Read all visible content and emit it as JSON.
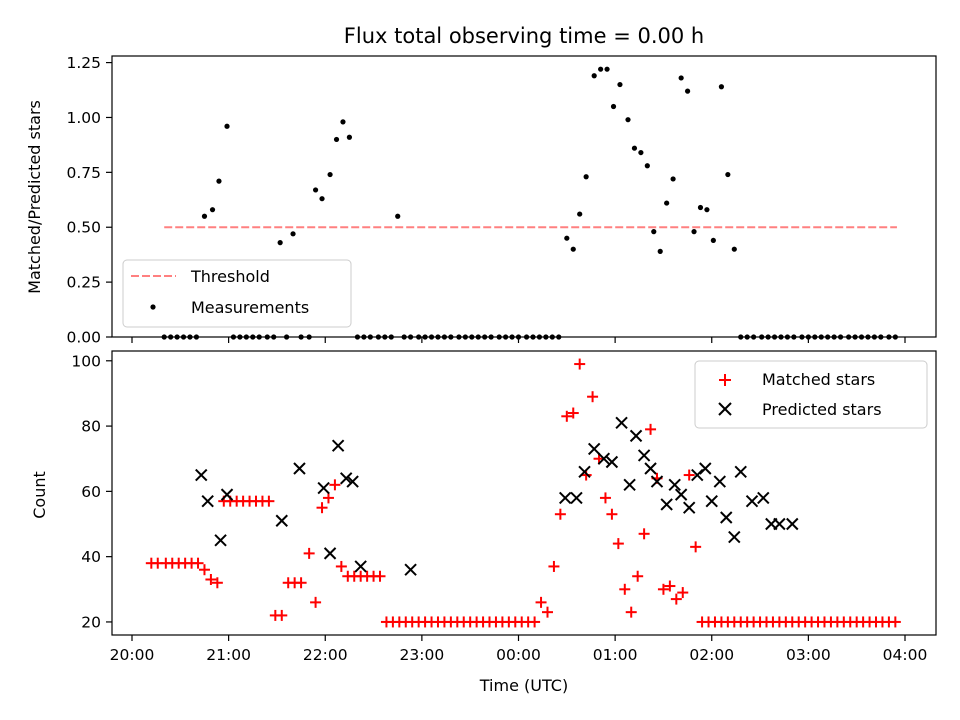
{
  "chart_data": [
    {
      "type": "scatter",
      "title": "Flux total observing time = 0.00 h",
      "xlabel": "",
      "ylabel": "Matched/Predicted stars",
      "ylim": [
        0,
        1.28
      ],
      "yticks": [
        "0.00",
        "0.25",
        "0.50",
        "0.75",
        "1.00",
        "1.25"
      ],
      "xlim": [
        "20:00",
        "04:00"
      ],
      "grid": false,
      "legend_position": "lower-left",
      "threshold": {
        "name": "Threshold",
        "value": 0.5,
        "x_start": "20:20",
        "x_end": "03:55",
        "color": "#ff8080"
      },
      "series": [
        {
          "name": "Measurements",
          "color": "#000000",
          "x": [
            "20:20",
            "20:24",
            "20:28",
            "20:32",
            "20:36",
            "20:40",
            "20:45",
            "20:50",
            "20:54",
            "20:59",
            "21:03",
            "21:07",
            "21:11",
            "21:15",
            "21:19",
            "21:24",
            "21:28",
            "21:32",
            "21:36",
            "21:40",
            "21:45",
            "21:50",
            "21:54",
            "21:58",
            "22:03",
            "22:07",
            "22:11",
            "22:15",
            "22:20",
            "22:24",
            "22:28",
            "22:33",
            "22:37",
            "22:41",
            "22:45",
            "22:49",
            "22:53",
            "22:58",
            "23:02",
            "23:06",
            "23:10",
            "23:14",
            "23:18",
            "23:23",
            "23:27",
            "23:31",
            "23:35",
            "23:39",
            "23:43",
            "23:48",
            "23:52",
            "23:56",
            "00:00",
            "00:05",
            "00:09",
            "00:13",
            "00:17",
            "00:21",
            "00:25",
            "00:30",
            "00:34",
            "00:38",
            "00:42",
            "00:47",
            "00:51",
            "00:55",
            "00:59",
            "01:03",
            "01:08",
            "01:12",
            "01:16",
            "01:20",
            "01:24",
            "01:28",
            "01:32",
            "01:36",
            "01:41",
            "01:45",
            "01:49",
            "01:53",
            "01:57",
            "02:01",
            "02:06",
            "02:10",
            "02:14",
            "02:18",
            "02:22",
            "02:26",
            "02:31",
            "02:35",
            "02:39",
            "02:43",
            "02:47",
            "02:51",
            "02:56",
            "03:00",
            "03:04",
            "03:08",
            "03:12",
            "03:16",
            "03:20",
            "03:25",
            "03:29",
            "03:33",
            "03:37",
            "03:41",
            "03:45",
            "03:50",
            "03:54"
          ],
          "y": [
            0,
            0,
            0,
            0,
            0,
            0,
            0.55,
            0.58,
            0.71,
            0.96,
            0,
            0,
            0,
            0,
            0,
            0,
            0,
            0.43,
            0,
            0.47,
            0,
            0,
            0.67,
            0.63,
            0.74,
            0.9,
            0.98,
            0.91,
            0,
            0,
            0,
            0,
            0,
            0,
            0.55,
            0,
            0,
            0,
            0,
            0,
            0,
            0,
            0,
            0,
            0,
            0,
            0,
            0,
            0,
            0,
            0,
            0,
            0,
            0,
            0,
            0,
            0,
            0,
            0,
            0.45,
            0.4,
            0.56,
            0.73,
            1.19,
            1.22,
            1.22,
            1.05,
            1.15,
            0.99,
            0.86,
            0.84,
            0.78,
            0.48,
            0.39,
            0.61,
            0.72,
            1.18,
            1.12,
            0.48,
            0.59,
            0.58,
            0.44,
            1.14,
            0.74,
            0.4,
            0,
            0,
            0,
            0,
            0,
            0,
            0,
            0,
            0,
            0,
            0,
            0,
            0,
            0,
            0,
            0,
            0,
            0,
            0,
            0,
            0,
            0,
            0,
            0
          ]
        }
      ]
    },
    {
      "type": "scatter",
      "title": "",
      "xlabel": "Time (UTC)",
      "ylabel": "Count",
      "ylim": [
        16,
        103
      ],
      "yticks": [
        "20",
        "40",
        "60",
        "80",
        "100"
      ],
      "xlim": [
        "20:00",
        "04:00"
      ],
      "xticks": [
        "20:00",
        "21:00",
        "22:00",
        "23:00",
        "00:00",
        "01:00",
        "02:00",
        "03:00",
        "04:00"
      ],
      "grid": false,
      "legend_position": "top-right",
      "series": [
        {
          "name": "Matched stars",
          "marker": "plus",
          "color": "#ff0000",
          "x": [
            "20:12",
            "20:16",
            "20:21",
            "20:25",
            "20:29",
            "20:33",
            "20:37",
            "20:41",
            "20:45",
            "20:49",
            "20:53",
            "20:57",
            "21:01",
            "21:05",
            "21:09",
            "21:13",
            "21:17",
            "21:21",
            "21:25",
            "21:29",
            "21:33",
            "21:37",
            "21:41",
            "21:45",
            "21:50",
            "21:54",
            "21:58",
            "22:02",
            "22:06",
            "22:10",
            "22:14",
            "22:18",
            "22:22",
            "22:26",
            "22:30",
            "22:34",
            "22:38",
            "22:42",
            "22:46",
            "22:50",
            "22:54",
            "22:58",
            "23:02",
            "23:06",
            "23:10",
            "23:14",
            "23:18",
            "23:22",
            "23:26",
            "23:30",
            "23:34",
            "23:38",
            "23:42",
            "23:46",
            "23:50",
            "23:54",
            "23:58",
            "00:02",
            "00:06",
            "00:10",
            "00:14",
            "00:18",
            "00:22",
            "00:26",
            "00:30",
            "00:34",
            "00:38",
            "00:42",
            "00:46",
            "00:50",
            "00:54",
            "00:58",
            "01:02",
            "01:06",
            "01:10",
            "01:14",
            "01:18",
            "01:22",
            "01:26",
            "01:30",
            "01:34",
            "01:38",
            "01:42",
            "01:46",
            "01:50",
            "01:54",
            "01:58",
            "02:02",
            "02:06",
            "02:10",
            "02:14",
            "02:18",
            "02:22",
            "02:26",
            "02:30",
            "02:34",
            "02:38",
            "02:42",
            "02:46",
            "02:50",
            "02:54",
            "02:58",
            "03:02",
            "03:06",
            "03:10",
            "03:14",
            "03:18",
            "03:22",
            "03:26",
            "03:30",
            "03:34",
            "03:38",
            "03:42",
            "03:46",
            "03:50",
            "03:54"
          ],
          "y": [
            38,
            38,
            38,
            38,
            38,
            38,
            38,
            38,
            36,
            33,
            32,
            57,
            57,
            57,
            57,
            57,
            57,
            57,
            57,
            22,
            22,
            32,
            32,
            32,
            41,
            26,
            55,
            58,
            62,
            37,
            34,
            34,
            34,
            34,
            34,
            34,
            20,
            20,
            20,
            20,
            20,
            20,
            20,
            20,
            20,
            20,
            20,
            20,
            20,
            20,
            20,
            20,
            20,
            20,
            20,
            20,
            20,
            20,
            20,
            20,
            26,
            23,
            37,
            53,
            83,
            84,
            99,
            65,
            89,
            70,
            58,
            53,
            44,
            30,
            23,
            34,
            47,
            79,
            64,
            30,
            31,
            27,
            29,
            65,
            43,
            20,
            20,
            20,
            20,
            20,
            20,
            20,
            20,
            20,
            20,
            20,
            20,
            20,
            20,
            20,
            20,
            20,
            20,
            20,
            20,
            20,
            20,
            20,
            20,
            20,
            20,
            20,
            20,
            20,
            20,
            20
          ]
        },
        {
          "name": "Predicted stars",
          "marker": "x",
          "color": "#000000",
          "x": [
            "20:43",
            "20:47",
            "20:55",
            "20:59",
            "21:33",
            "21:44",
            "21:59",
            "22:03",
            "22:08",
            "22:13",
            "22:17",
            "22:22",
            "22:53",
            "00:29",
            "00:36",
            "00:41",
            "00:47",
            "00:53",
            "00:58",
            "01:04",
            "01:09",
            "01:13",
            "01:18",
            "01:22",
            "01:26",
            "01:32",
            "01:37",
            "01:41",
            "01:46",
            "01:51",
            "01:56",
            "02:00",
            "02:05",
            "02:09",
            "02:14",
            "02:18",
            "02:25",
            "02:32",
            "02:37",
            "02:42",
            "02:50"
          ],
          "y": [
            65,
            57,
            45,
            59,
            51,
            67,
            61,
            41,
            74,
            64,
            63,
            37,
            36,
            58,
            58,
            66,
            73,
            70,
            69,
            81,
            62,
            77,
            71,
            67,
            63,
            56,
            62,
            59,
            55,
            65,
            67,
            57,
            63,
            52,
            46,
            66,
            57,
            58,
            50,
            50,
            50
          ]
        }
      ]
    }
  ]
}
